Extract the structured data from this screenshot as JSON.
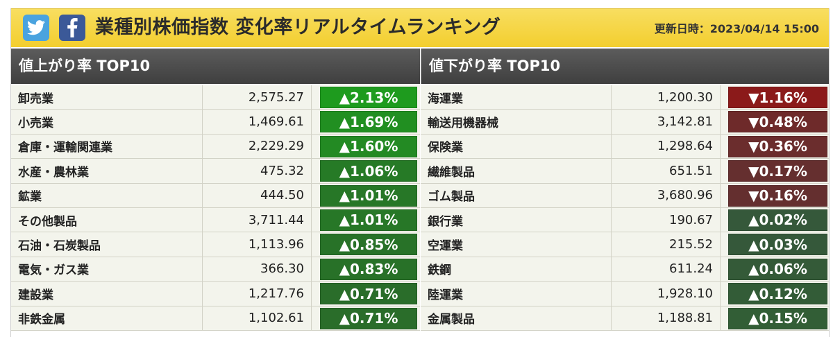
{
  "header": {
    "title": "業種別株価指数 変化率リアルタイムランキング",
    "updated_label": "更新日時：2023/04/14 15:00",
    "twitter_icon": "twitter-icon",
    "facebook_icon": "facebook-icon",
    "bg_color": "#f3ce2e"
  },
  "up": {
    "heading": "値上がり率 TOP10",
    "rows": [
      {
        "name": "卸売業",
        "price": "2,575.27",
        "change": "▲2.13%",
        "color": "#1e9b1e"
      },
      {
        "name": "小売業",
        "price": "1,469.61",
        "change": "▲1.69%",
        "color": "#218f21"
      },
      {
        "name": "倉庫・運輸関連業",
        "price": "2,229.29",
        "change": "▲1.60%",
        "color": "#238a23"
      },
      {
        "name": "水産・農林業",
        "price": "475.32",
        "change": "▲1.06%",
        "color": "#267a26"
      },
      {
        "name": "鉱業",
        "price": "444.50",
        "change": "▲1.01%",
        "color": "#277727"
      },
      {
        "name": "その他製品",
        "price": "3,711.44",
        "change": "▲1.01%",
        "color": "#277727"
      },
      {
        "name": "石油・石炭製品",
        "price": "1,113.96",
        "change": "▲0.85%",
        "color": "#287228"
      },
      {
        "name": "電気・ガス業",
        "price": "366.30",
        "change": "▲0.83%",
        "color": "#287128"
      },
      {
        "name": "建設業",
        "price": "1,217.76",
        "change": "▲0.71%",
        "color": "#2a6d2a"
      },
      {
        "name": "非鉄金属",
        "price": "1,102.61",
        "change": "▲0.71%",
        "color": "#2a6d2a"
      }
    ]
  },
  "down": {
    "heading": "値下がり率 TOP10",
    "rows": [
      {
        "name": "海運業",
        "price": "1,200.30",
        "change": "▼1.16%",
        "color": "#8b1a1a"
      },
      {
        "name": "輸送用機器械",
        "price": "3,142.81",
        "change": "▼0.48%",
        "color": "#6e2a2a"
      },
      {
        "name": "保険業",
        "price": "1,298.64",
        "change": "▼0.36%",
        "color": "#6b2d2d"
      },
      {
        "name": "繊維製品",
        "price": "651.51",
        "change": "▼0.17%",
        "color": "#652f2f"
      },
      {
        "name": "ゴム製品",
        "price": "3,680.96",
        "change": "▼0.16%",
        "color": "#642f2f"
      },
      {
        "name": "銀行業",
        "price": "190.67",
        "change": "▲0.02%",
        "color": "#35583a"
      },
      {
        "name": "空運業",
        "price": "215.52",
        "change": "▲0.03%",
        "color": "#35583a"
      },
      {
        "name": "鉄鋼",
        "price": "611.24",
        "change": "▲0.06%",
        "color": "#345a38"
      },
      {
        "name": "陸運業",
        "price": "1,928.10",
        "change": "▲0.12%",
        "color": "#335c37"
      },
      {
        "name": "金属製品",
        "price": "1,188.81",
        "change": "▲0.15%",
        "color": "#325e36"
      }
    ]
  }
}
